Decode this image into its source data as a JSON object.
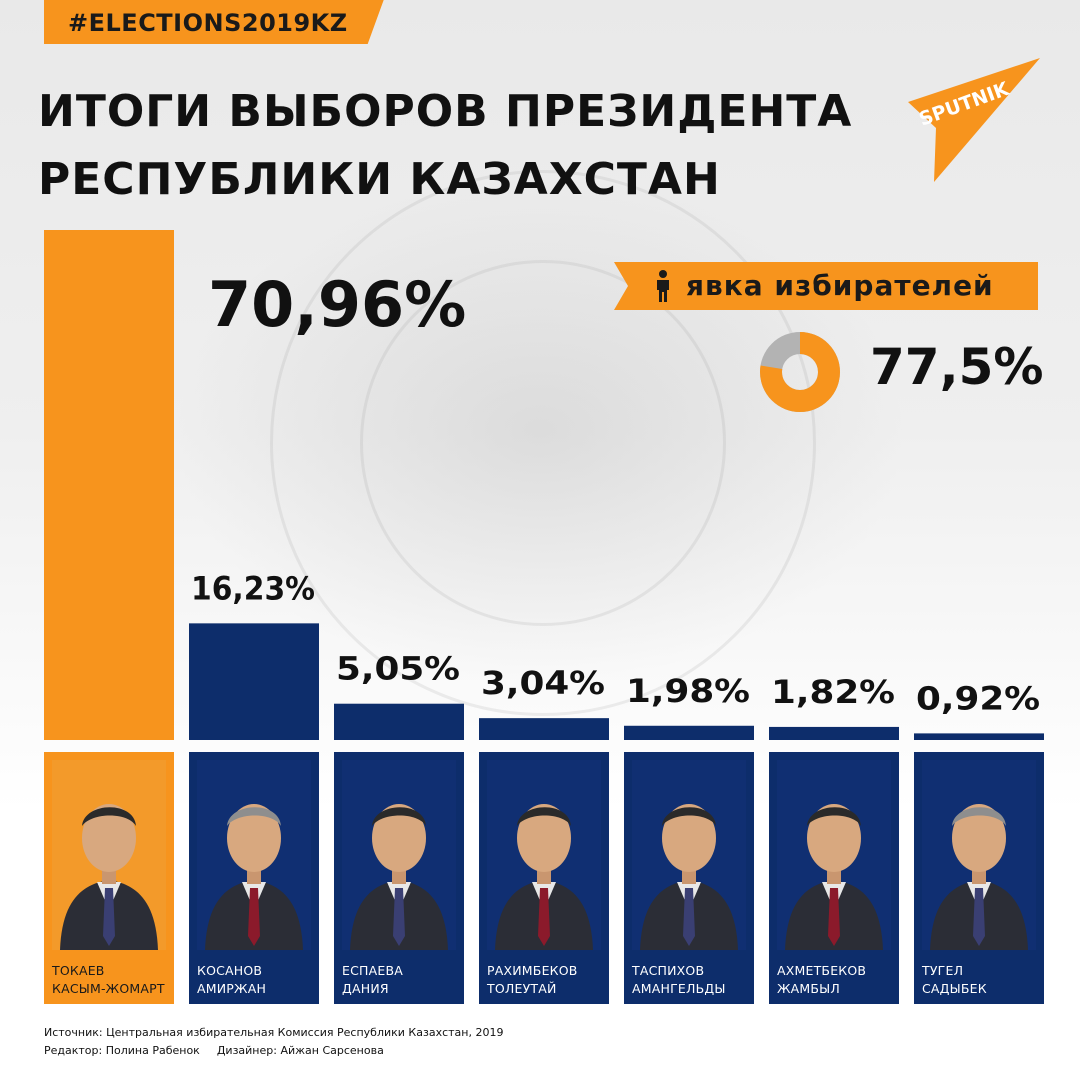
{
  "hashtag": "#ELECTIONS2019KZ",
  "title_line1": "ИТОГИ ВЫБОРОВ ПРЕЗИДЕНТА",
  "title_line2": "РЕСПУБЛИКИ КАЗАХСТАН",
  "logo_text": "SPUTNIK",
  "turnout": {
    "label": "явка избирателей",
    "value_text": "77,5%",
    "value": 77.5,
    "icon": "person-icon"
  },
  "colors": {
    "accent": "#f7941d",
    "bar": "#0d2d6b",
    "donut_rest": "#b3b3b3",
    "text": "#111111"
  },
  "chart_data": {
    "type": "bar",
    "categories": [
      "ТОКАЕВ КАСЫМ-ЖОМАРТ",
      "КОСАНОВ АМИРЖАН",
      "ЕСПАЕВА ДАНИЯ",
      "РАХИМБЕКОВ ТОЛЕУТАЙ",
      "ТАСПИХОВ АМАНГЕЛЬДЫ",
      "АХМЕТБЕКОВ ЖАМБЫЛ",
      "ТУГЕЛ САДЫБЕК"
    ],
    "values": [
      70.96,
      16.23,
      5.05,
      3.04,
      1.98,
      1.82,
      0.92
    ],
    "value_labels": [
      "70,96%",
      "16,23%",
      "5,05%",
      "3,04%",
      "1,98%",
      "1,82%",
      "0,92%"
    ],
    "title": "ИТОГИ ВЫБОРОВ ПРЕЗИДЕНТА РЕСПУБЛИКИ КАЗАХСТАН",
    "xlabel": "",
    "ylabel": "",
    "grid": false,
    "highlight_index": 0
  },
  "candidates": [
    {
      "surname": "ТОКАЕВ",
      "given": "КАСЫМ-ЖОМАРТ"
    },
    {
      "surname": "КОСАНОВ",
      "given": "АМИРЖАН"
    },
    {
      "surname": "ЕСПАЕВА",
      "given": "ДАНИЯ"
    },
    {
      "surname": "РАХИМБЕКОВ",
      "given": "ТОЛЕУТАЙ"
    },
    {
      "surname": "ТАСПИХОВ",
      "given": "АМАНГЕЛЬДЫ"
    },
    {
      "surname": "АХМЕТБЕКОВ",
      "given": "ЖАМБЫЛ"
    },
    {
      "surname": "ТУГЕЛ",
      "given": "САДЫБЕК"
    }
  ],
  "credits": {
    "source": "Источник: Центральная избирательная Комиссия Республики Казахстан, 2019",
    "editor": "Редактор: Полина Рабенок",
    "designer": "Дизайнер: Айжан Сарсенова"
  }
}
